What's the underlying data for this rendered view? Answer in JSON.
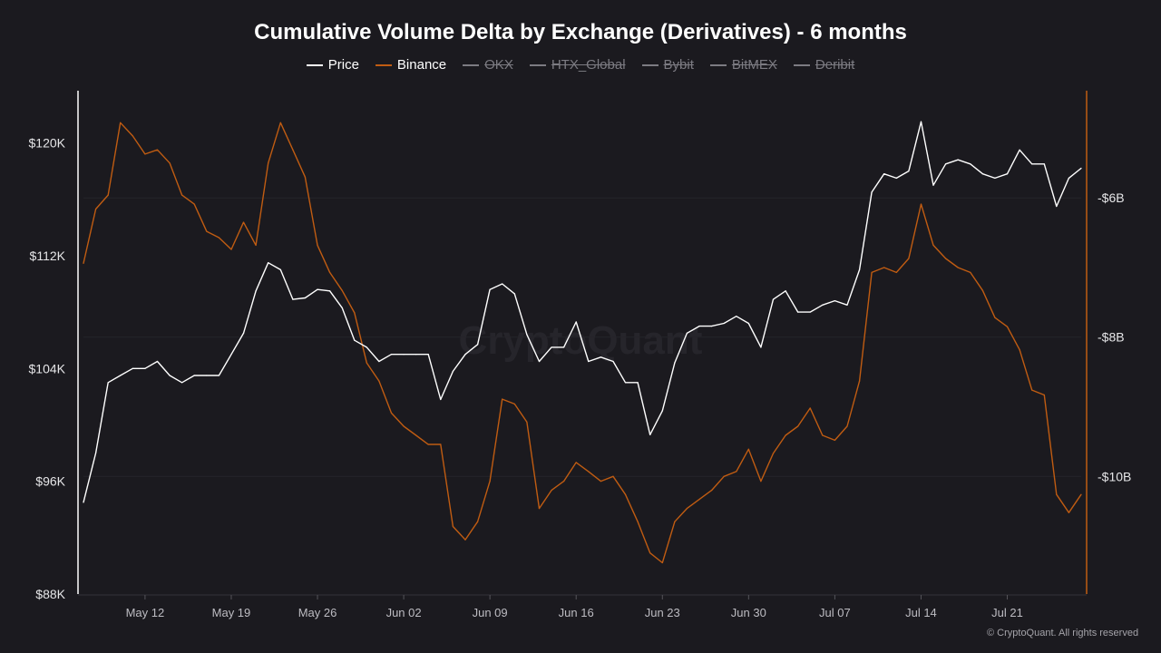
{
  "chart_data": {
    "type": "line",
    "title": "Cumulative Volume Delta by Exchange (Derivatives) - 6 months",
    "legend": [
      {
        "name": "Price",
        "color": "#ffffff",
        "active": true
      },
      {
        "name": "Binance",
        "color": "#c05c12",
        "active": true
      },
      {
        "name": "OKX",
        "color": "#7c7b82",
        "active": false
      },
      {
        "name": "HTX_Global",
        "color": "#7c7b82",
        "active": false
      },
      {
        "name": "Bybit",
        "color": "#7c7b82",
        "active": false
      },
      {
        "name": "BitMEX",
        "color": "#7c7b82",
        "active": false
      },
      {
        "name": "Deribit",
        "color": "#7c7b82",
        "active": false
      }
    ],
    "legend_position": "top",
    "x_ticks": [
      "May 12",
      "May 19",
      "May 26",
      "Jun 02",
      "Jun 09",
      "Jun 16",
      "Jun 23",
      "Jun 30",
      "Jul 07",
      "Jul 14",
      "Jul 21"
    ],
    "x_range": [
      "2025-05-07",
      "2025-07-27"
    ],
    "y_left": {
      "ticks": [
        "$88K",
        "$96K",
        "$104K",
        "$112K",
        "$120K"
      ],
      "tick_values": [
        88,
        96,
        104,
        112,
        120
      ],
      "range": [
        88,
        123.7
      ],
      "unit": "$K"
    },
    "y_right": {
      "ticks": [
        "-$10B",
        "-$8B",
        "-$6B"
      ],
      "tick_values": [
        -10,
        -8,
        -6
      ],
      "range": [
        -11.69,
        -4.46
      ],
      "unit": "$B"
    },
    "start_date": "2025-05-07",
    "series": [
      {
        "name": "Price",
        "axis": "left",
        "values": [
          94.5,
          98,
          103,
          103.5,
          104,
          104,
          104.5,
          103.5,
          103,
          103.5,
          103.5,
          103.5,
          105,
          106.5,
          109.5,
          111.5,
          111,
          108.9,
          109,
          109.6,
          109.5,
          108.3,
          106,
          105.5,
          104.5,
          105,
          105,
          105,
          105,
          101.8,
          103.8,
          105,
          105.7,
          109.6,
          110,
          109.3,
          106.4,
          104.5,
          105.5,
          105.5,
          107.3,
          104.5,
          104.8,
          104.5,
          103,
          103,
          99.3,
          101,
          104.4,
          106.5,
          107,
          107,
          107.2,
          107.7,
          107.2,
          105.5,
          108.9,
          109.5,
          108,
          108,
          108.5,
          108.8,
          108.5,
          111,
          116.5,
          117.8,
          117.5,
          118,
          121.5,
          117,
          118.5,
          118.8,
          118.5,
          117.8,
          117.5,
          117.8,
          119.5,
          118.5,
          118.5,
          115.5,
          117.5,
          118.2
        ]
      },
      {
        "name": "Binance",
        "axis": "right",
        "values": [
          -6.94,
          -6.16,
          -5.96,
          -4.92,
          -5.11,
          -5.37,
          -5.31,
          -5.5,
          -5.96,
          -6.09,
          -6.48,
          -6.57,
          -6.74,
          -6.35,
          -6.68,
          -5.5,
          -4.92,
          -5.31,
          -5.7,
          -6.68,
          -7.07,
          -7.33,
          -7.65,
          -8.37,
          -8.63,
          -9.09,
          -9.28,
          -9.41,
          -9.54,
          -9.54,
          -10.72,
          -10.91,
          -10.65,
          -10.07,
          -8.89,
          -8.96,
          -9.22,
          -10.46,
          -10.2,
          -10.07,
          -9.8,
          -9.93,
          -10.07,
          -10.0,
          -10.26,
          -10.65,
          -11.1,
          -11.24,
          -10.65,
          -10.46,
          -10.33,
          -10.2,
          -10.0,
          -9.93,
          -9.61,
          -10.07,
          -9.67,
          -9.41,
          -9.28,
          -9.02,
          -9.41,
          -9.48,
          -9.28,
          -8.63,
          -7.07,
          -7.0,
          -7.07,
          -6.87,
          -6.09,
          -6.68,
          -6.87,
          -7.0,
          -7.07,
          -7.33,
          -7.72,
          -7.85,
          -8.18,
          -8.76,
          -8.83,
          -10.26,
          -10.52,
          -10.26
        ]
      }
    ],
    "grid": true,
    "watermark": "CryptoQuant"
  },
  "footer": {
    "credit": "© CryptoQuant. All rights reserved"
  }
}
